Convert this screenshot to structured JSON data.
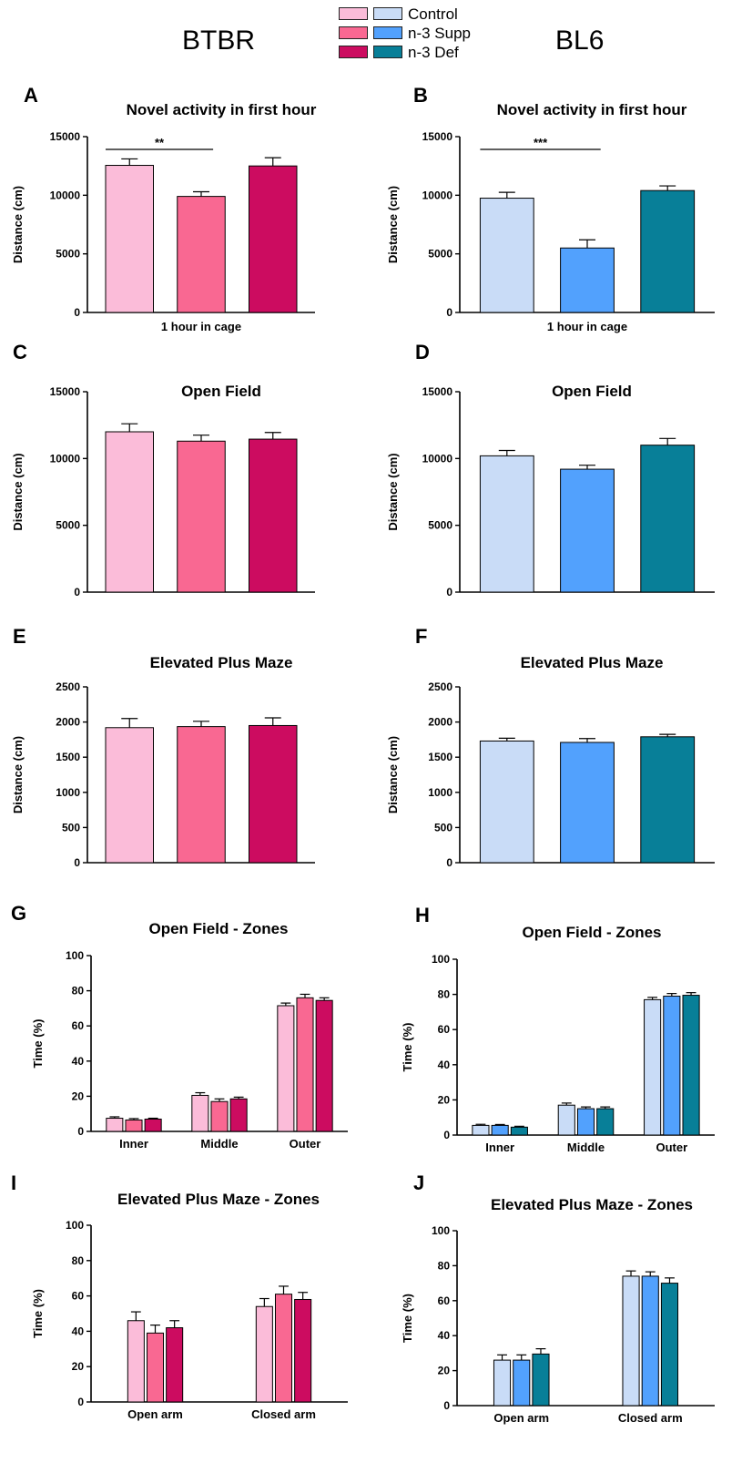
{
  "header": {
    "left_strain": "BTBR",
    "right_strain": "BL6",
    "legend": [
      {
        "label": "Control",
        "btbr_color": "#fbbcd9",
        "bl6_color": "#c9dcf7"
      },
      {
        "label": "n-3 Supp",
        "btbr_color": "#f96892",
        "bl6_color": "#52a1fd"
      },
      {
        "label": "n-3 Def",
        "btbr_color": "#cc0c60",
        "bl6_color": "#087f98"
      }
    ]
  },
  "colors": {
    "btbr": [
      "#fbbcd9",
      "#f96892",
      "#cc0c60"
    ],
    "bl6": [
      "#c9dcf7",
      "#52a1fd",
      "#087f98"
    ]
  },
  "chart_data": [
    {
      "panel": "A",
      "type": "bar",
      "strain": "BTBR",
      "title": "Novel activity in first hour",
      "ylabel": "Distance (cm)",
      "xlabel": "1 hour in cage",
      "ylim": [
        0,
        15000
      ],
      "yticks": [
        "0",
        "5000",
        "10000",
        "15000"
      ],
      "categories": [
        ""
      ],
      "series": [
        {
          "name": "Control",
          "values": [
            12550
          ],
          "errors": [
            550
          ]
        },
        {
          "name": "n-3 Supp",
          "values": [
            9900
          ],
          "errors": [
            400
          ]
        },
        {
          "name": "n-3 Def",
          "values": [
            12500
          ],
          "errors": [
            700
          ]
        }
      ],
      "significance": {
        "label": "**",
        "from": 0,
        "to": 1
      }
    },
    {
      "panel": "B",
      "type": "bar",
      "strain": "BL6",
      "title": "Novel activity in first hour",
      "ylabel": "Distance (cm)",
      "xlabel": "1 hour in cage",
      "ylim": [
        0,
        15000
      ],
      "yticks": [
        "0",
        "5000",
        "10000",
        "15000"
      ],
      "categories": [
        ""
      ],
      "series": [
        {
          "name": "Control",
          "values": [
            9750
          ],
          "errors": [
            500
          ]
        },
        {
          "name": "n-3 Supp",
          "values": [
            5500
          ],
          "errors": [
            700
          ]
        },
        {
          "name": "n-3 Def",
          "values": [
            10400
          ],
          "errors": [
            400
          ]
        }
      ],
      "significance": {
        "label": "***",
        "from": 0,
        "to": 1
      }
    },
    {
      "panel": "C",
      "type": "bar",
      "strain": "BTBR",
      "title": "Open Field",
      "ylabel": "Distance (cm)",
      "xlabel": "",
      "ylim": [
        0,
        15000
      ],
      "yticks": [
        "0",
        "5000",
        "10000",
        "15000"
      ],
      "categories": [
        ""
      ],
      "series": [
        {
          "name": "Control",
          "values": [
            12000
          ],
          "errors": [
            600
          ]
        },
        {
          "name": "n-3 Supp",
          "values": [
            11300
          ],
          "errors": [
            450
          ]
        },
        {
          "name": "n-3 Def",
          "values": [
            11450
          ],
          "errors": [
            500
          ]
        }
      ]
    },
    {
      "panel": "D",
      "type": "bar",
      "strain": "BL6",
      "title": "Open Field",
      "ylabel": "Distance (cm)",
      "xlabel": "",
      "ylim": [
        0,
        15000
      ],
      "yticks": [
        "0",
        "5000",
        "10000",
        "15000"
      ],
      "categories": [
        ""
      ],
      "series": [
        {
          "name": "Control",
          "values": [
            10200
          ],
          "errors": [
            400
          ]
        },
        {
          "name": "n-3 Supp",
          "values": [
            9200
          ],
          "errors": [
            300
          ]
        },
        {
          "name": "n-3 Def",
          "values": [
            11000
          ],
          "errors": [
            500
          ]
        }
      ]
    },
    {
      "panel": "E",
      "type": "bar",
      "strain": "BTBR",
      "title": "Elevated Plus Maze",
      "ylabel": "Distance (cm)",
      "xlabel": "",
      "ylim": [
        0,
        2500
      ],
      "yticks": [
        "0",
        "500",
        "1000",
        "1500",
        "2000",
        "2500"
      ],
      "categories": [
        ""
      ],
      "series": [
        {
          "name": "Control",
          "values": [
            1920
          ],
          "errors": [
            130
          ]
        },
        {
          "name": "n-3 Supp",
          "values": [
            1935
          ],
          "errors": [
            75
          ]
        },
        {
          "name": "n-3 Def",
          "values": [
            1950
          ],
          "errors": [
            110
          ]
        }
      ]
    },
    {
      "panel": "F",
      "type": "bar",
      "strain": "BL6",
      "title": "Elevated Plus Maze",
      "ylabel": "Distance (cm)",
      "xlabel": "",
      "ylim": [
        0,
        2500
      ],
      "yticks": [
        "0",
        "500",
        "1000",
        "1500",
        "2000",
        "2500"
      ],
      "categories": [
        ""
      ],
      "series": [
        {
          "name": "Control",
          "values": [
            1730
          ],
          "errors": [
            40
          ]
        },
        {
          "name": "n-3 Supp",
          "values": [
            1710
          ],
          "errors": [
            55
          ]
        },
        {
          "name": "n-3 Def",
          "values": [
            1790
          ],
          "errors": [
            35
          ]
        }
      ]
    },
    {
      "panel": "G",
      "type": "bar",
      "strain": "BTBR",
      "title": "Open Field - Zones",
      "ylabel": "Time (%)",
      "xlabel": "",
      "ylim": [
        0,
        100
      ],
      "yticks": [
        "0",
        "20",
        "40",
        "60",
        "80",
        "100"
      ],
      "categories": [
        "Inner",
        "Middle",
        "Outer"
      ],
      "series": [
        {
          "name": "Control",
          "values": [
            7.5,
            20.5,
            71.5
          ],
          "errors": [
            0.8,
            1.5,
            1.5
          ]
        },
        {
          "name": "n-3 Supp",
          "values": [
            6.5,
            17,
            76
          ],
          "errors": [
            0.8,
            1.5,
            2
          ]
        },
        {
          "name": "n-3 Def",
          "values": [
            7,
            18.5,
            74.5
          ],
          "errors": [
            0.5,
            1,
            1.5
          ]
        }
      ]
    },
    {
      "panel": "H",
      "type": "bar",
      "strain": "BL6",
      "title": "Open Field - Zones",
      "ylabel": "Time (%)",
      "xlabel": "",
      "ylim": [
        0,
        100
      ],
      "yticks": [
        "0",
        "20",
        "40",
        "60",
        "80",
        "100"
      ],
      "categories": [
        "Inner",
        "Middle",
        "Outer"
      ],
      "series": [
        {
          "name": "Control",
          "values": [
            5.5,
            17,
            77
          ],
          "errors": [
            0.6,
            1.2,
            1.3
          ]
        },
        {
          "name": "n-3 Supp",
          "values": [
            5.5,
            15,
            79
          ],
          "errors": [
            0.5,
            1,
            1.5
          ]
        },
        {
          "name": "n-3 Def",
          "values": [
            4.5,
            15,
            79.5
          ],
          "errors": [
            0.5,
            1,
            1.5
          ]
        }
      ]
    },
    {
      "panel": "I",
      "type": "bar",
      "strain": "BTBR",
      "title": "Elevated Plus Maze - Zones",
      "ylabel": "Time (%)",
      "xlabel": "",
      "ylim": [
        0,
        100
      ],
      "yticks": [
        "0",
        "20",
        "40",
        "60",
        "80",
        "100"
      ],
      "categories": [
        "Open arm",
        "Closed arm"
      ],
      "series": [
        {
          "name": "Control",
          "values": [
            46,
            54
          ],
          "errors": [
            5,
            4.5
          ]
        },
        {
          "name": "n-3 Supp",
          "values": [
            39,
            61
          ],
          "errors": [
            4.5,
            4.5
          ]
        },
        {
          "name": "n-3 Def",
          "values": [
            42,
            58
          ],
          "errors": [
            4,
            4
          ]
        }
      ]
    },
    {
      "panel": "J",
      "type": "bar",
      "strain": "BL6",
      "title": "Elevated Plus Maze - Zones",
      "ylabel": "Time (%)",
      "xlabel": "",
      "ylim": [
        0,
        100
      ],
      "yticks": [
        "0",
        "20",
        "40",
        "60",
        "80",
        "100"
      ],
      "categories": [
        "Open arm",
        "Closed arm"
      ],
      "series": [
        {
          "name": "Control",
          "values": [
            26,
            74
          ],
          "errors": [
            3,
            3
          ]
        },
        {
          "name": "n-3 Supp",
          "values": [
            26,
            74
          ],
          "errors": [
            3,
            2.5
          ]
        },
        {
          "name": "n-3 Def",
          "values": [
            29.5,
            70
          ],
          "errors": [
            3,
            3
          ]
        }
      ]
    }
  ]
}
